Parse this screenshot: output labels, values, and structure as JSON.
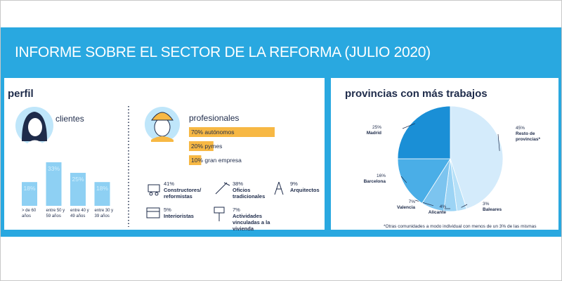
{
  "title": "INFORME SOBRE EL SECTOR DE LA REFORMA (JULIO 2020)",
  "perfil": {
    "title": "perfil",
    "oficios": [
      {
        "pct": "41%",
        "label": "Constructores/ reformistas"
      },
      {
        "pct": "38%",
        "label": "Oficios tradicionales"
      },
      {
        "pct": "9%",
        "label": "Arquitectos"
      },
      {
        "pct": "5%",
        "label": "Interioristas"
      },
      {
        "pct": "7%",
        "label": "Actividades vinculadas a la vivienda"
      }
    ]
  },
  "chart_data": [
    {
      "type": "bar",
      "title": "clientes",
      "categories": [
        "> de 60 años",
        "entre 50 y 59 años",
        "entre 40 y 49 años",
        "entre 30 y 39 años"
      ],
      "values": [
        18,
        33,
        25,
        18
      ],
      "value_labels": [
        "18%",
        "33%",
        "25%",
        "18%"
      ],
      "color": "#8ed0f3"
    },
    {
      "type": "hbar",
      "title": "profesionales",
      "categories": [
        "autónomos",
        "pymes",
        "gran empresa"
      ],
      "values": [
        70,
        20,
        10
      ],
      "value_labels": [
        "70%",
        "20%",
        "10%"
      ],
      "color": "#f7b844"
    },
    {
      "type": "pie",
      "title": "provincias con más trabajos",
      "categories": [
        "Resto de provincias*",
        "Baleares",
        "Alicante",
        "Valencia",
        "Barcelona",
        "Madrid"
      ],
      "values": [
        45,
        3,
        4,
        7,
        16,
        25
      ],
      "value_labels": [
        "45%",
        "3%",
        "4%",
        "7%",
        "16%",
        "25%"
      ],
      "colors": [
        "#d4ebfb",
        "#b6e0f8",
        "#9cd4f5",
        "#7cc4ef",
        "#4aaee7",
        "#1a8fd6"
      ],
      "footnote": "*Otras comunidades a modo individual con menos de un 3% de las mismas"
    }
  ]
}
